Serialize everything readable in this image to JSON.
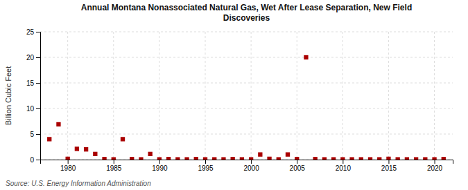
{
  "chart_data": {
    "type": "scatter",
    "title": "Annual Montana Nonassociated Natural Gas, Wet After Lease Separation, New Field\nDiscoveries",
    "ylabel": "Billion Cubic Feet",
    "source": "Source: U.S. Energy Information Administration",
    "color": "#aa0000",
    "marker": "square",
    "grid": true,
    "xlim": [
      1977,
      2022
    ],
    "ylim": [
      0,
      25
    ],
    "xticks": [
      1980,
      1985,
      1990,
      1995,
      2000,
      2005,
      2010,
      2015,
      2020
    ],
    "yticks": [
      0,
      5,
      10,
      15,
      20,
      25
    ],
    "x": [
      1978,
      1979,
      1980,
      1981,
      1982,
      1983,
      1984,
      1985,
      1986,
      1987,
      1988,
      1989,
      1990,
      1991,
      1992,
      1993,
      1994,
      1995,
      1996,
      1997,
      1998,
      1999,
      2000,
      2001,
      2002,
      2003,
      2004,
      2005,
      2006,
      2007,
      2008,
      2009,
      2010,
      2011,
      2012,
      2013,
      2014,
      2015,
      2016,
      2017,
      2018,
      2019,
      2020,
      2021
    ],
    "values": [
      4.0,
      6.9,
      0.15,
      2.1,
      2.0,
      1.1,
      0.1,
      0.05,
      4.0,
      0.1,
      0.05,
      1.1,
      0.05,
      0.1,
      0.05,
      0.05,
      0.1,
      0.05,
      0.05,
      0.05,
      0.1,
      0.05,
      0.05,
      1.0,
      0.15,
      0.05,
      1.0,
      0.1,
      20.0,
      0.1,
      0.05,
      0.05,
      0.05,
      0.05,
      0.05,
      0.05,
      0.05,
      0.15,
      0.05,
      0.05,
      0.05,
      0.05,
      0.05,
      0.1
    ]
  }
}
